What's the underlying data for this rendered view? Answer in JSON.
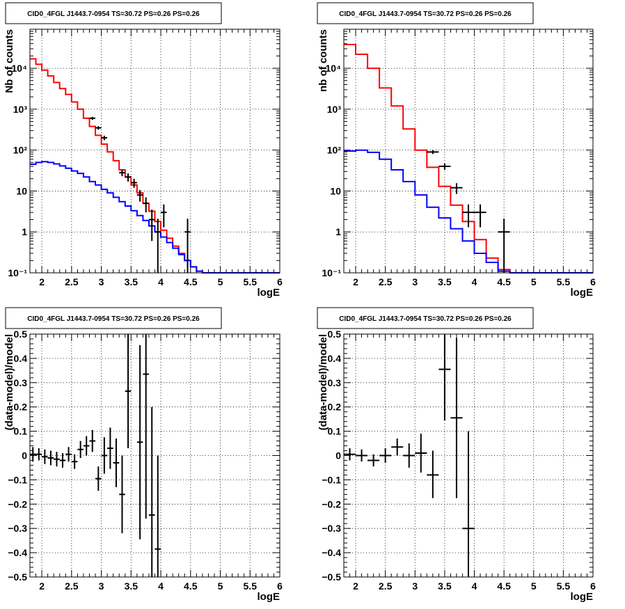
{
  "chart_data": [
    {
      "type": "line",
      "title": "CID0_4FGL J1443.7-0954 TS=30.72 PS=0.26 PS=0.26",
      "xlabel": "logE",
      "ylabel": "Nb of counts",
      "xlim": [
        1.8,
        6.0
      ],
      "ylim": [
        0.1,
        90000
      ],
      "y_scale": "log",
      "grid": true,
      "x_ticks": [
        2,
        2.5,
        3,
        3.5,
        4,
        4.5,
        5,
        5.5,
        6
      ],
      "x_tick_labels": [
        "2",
        "2.5",
        "3",
        "3.5",
        "4",
        "4.5",
        "5",
        "5.5",
        "6"
      ],
      "y_ticks": [
        0.1,
        1,
        10,
        100,
        1000,
        10000
      ],
      "y_tick_labels": [
        "10⁻¹",
        "1",
        "10",
        "10²",
        "10³",
        "10⁴"
      ],
      "bin_edges": [
        1.8,
        1.9,
        2.0,
        2.1,
        2.2,
        2.3,
        2.4,
        2.5,
        2.6,
        2.7,
        2.8,
        2.9,
        3.0,
        3.1,
        3.2,
        3.3,
        3.4,
        3.5,
        3.6,
        3.7,
        3.8,
        3.9,
        4.0,
        4.1,
        4.2,
        4.3,
        4.4,
        4.5,
        4.6,
        4.7,
        4.8,
        4.9,
        5.0,
        5.1,
        5.2,
        5.3,
        5.4,
        5.5,
        5.6,
        5.7,
        5.8,
        5.9,
        6.0
      ],
      "series": [
        {
          "name": "",
          "color": "#ff0000",
          "style": "step",
          "values": [
            17000,
            12500,
            9000,
            6500,
            4500,
            3200,
            2300,
            1500,
            1000,
            600,
            380,
            230,
            140,
            90,
            55,
            33,
            22,
            14,
            9,
            5,
            3.2,
            1.8,
            1.1,
            0.7,
            0.45,
            0.3,
            0.2,
            0.14,
            0.11,
            0.1,
            0.1,
            0.1,
            0.1,
            0.1,
            0.1,
            0.1,
            0.1,
            0.1,
            0.1,
            0.1,
            0.1,
            0.1
          ]
        },
        {
          "name": "",
          "color": "#0000ff",
          "style": "step",
          "values": [
            45,
            50,
            52,
            50,
            46,
            41,
            36,
            31,
            27,
            22,
            17,
            14,
            11,
            9,
            7,
            5.5,
            4.3,
            3.3,
            2.5,
            1.9,
            1.4,
            1.0,
            0.75,
            0.55,
            0.4,
            0.28,
            0.2,
            0.14,
            0.11,
            0.1,
            0.1,
            0.1,
            0.1,
            0.1,
            0.1,
            0.1,
            0.1,
            0.1,
            0.1,
            0.1,
            0.1,
            0.1
          ]
        }
      ],
      "points": [
        {
          "x": 2.85,
          "y": 600,
          "ylo": 550,
          "yhi": 650
        },
        {
          "x": 2.95,
          "y": 350,
          "ylo": 315,
          "yhi": 385
        },
        {
          "x": 3.05,
          "y": 200,
          "ylo": 175,
          "yhi": 225
        },
        {
          "x": 3.35,
          "y": 28,
          "ylo": 23,
          "yhi": 33
        },
        {
          "x": 3.45,
          "y": 22,
          "ylo": 17,
          "yhi": 27
        },
        {
          "x": 3.55,
          "y": 16,
          "ylo": 12,
          "yhi": 20
        },
        {
          "x": 3.65,
          "y": 8,
          "ylo": 5.5,
          "yhi": 10.5
        },
        {
          "x": 3.75,
          "y": 5,
          "ylo": 3,
          "yhi": 7
        },
        {
          "x": 3.85,
          "y": 2,
          "ylo": 0.6,
          "yhi": 3.5
        },
        {
          "x": 3.95,
          "y": 1,
          "ylo": 0.1,
          "yhi": 2.1
        },
        {
          "x": 4.05,
          "y": 3,
          "ylo": 1.3,
          "yhi": 4.7
        },
        {
          "x": 4.45,
          "y": 1,
          "ylo": 0.1,
          "yhi": 2.1
        }
      ]
    },
    {
      "type": "line",
      "title": "CID0_4FGL J1443.7-0954 TS=30.72 PS=0.26 PS=0.26",
      "xlabel": "logE",
      "ylabel": "nb of counts",
      "xlim": [
        1.8,
        6.0
      ],
      "ylim": [
        0.1,
        90000
      ],
      "y_scale": "log",
      "grid": true,
      "x_ticks": [
        2,
        2.5,
        3,
        3.5,
        4,
        4.5,
        5,
        5.5,
        6
      ],
      "x_tick_labels": [
        "2",
        "2.5",
        "3",
        "3.5",
        "4",
        "4.5",
        "5",
        "5.5",
        "6"
      ],
      "y_ticks": [
        0.1,
        1,
        10,
        100,
        1000,
        10000
      ],
      "y_tick_labels": [
        "10⁻¹",
        "1",
        "10",
        "10²",
        "10³",
        "10⁴"
      ],
      "bin_edges": [
        1.8,
        2.0,
        2.2,
        2.4,
        2.6,
        2.8,
        3.0,
        3.2,
        3.4,
        3.6,
        3.8,
        4.0,
        4.2,
        4.4,
        4.6,
        4.8,
        5.0,
        5.2,
        5.4,
        5.6,
        5.8,
        6.0
      ],
      "series": [
        {
          "name": "",
          "color": "#ff0000",
          "style": "step",
          "values": [
            38000,
            22000,
            10000,
            3300,
            1200,
            330,
            100,
            38,
            13,
            4.5,
            1.8,
            0.65,
            0.23,
            0.12,
            0.1,
            0.1,
            0.1,
            0.1,
            0.1,
            0.1,
            0.1
          ]
        },
        {
          "name": "",
          "color": "#0000ff",
          "style": "step",
          "values": [
            95,
            100,
            88,
            60,
            33,
            17,
            8,
            4,
            2.2,
            1.2,
            0.6,
            0.3,
            0.18,
            0.11,
            0.1,
            0.1,
            0.1,
            0.1,
            0.1,
            0.1,
            0.1
          ]
        }
      ],
      "points": [
        {
          "x": 3.3,
          "y": 90,
          "ylo": 80,
          "yhi": 100
        },
        {
          "x": 3.5,
          "y": 40,
          "ylo": 33,
          "yhi": 47
        },
        {
          "x": 3.7,
          "y": 12,
          "ylo": 8.5,
          "yhi": 15.5
        },
        {
          "x": 3.9,
          "y": 3,
          "ylo": 1.3,
          "yhi": 4.7
        },
        {
          "x": 4.1,
          "y": 3,
          "ylo": 1.3,
          "yhi": 4.7
        },
        {
          "x": 4.5,
          "y": 1,
          "ylo": 0.1,
          "yhi": 2.1
        }
      ]
    },
    {
      "type": "scatter",
      "title": "CID0_4FGL J1443.7-0954 TS=30.72 PS=0.26 PS=0.26",
      "xlabel": "logE",
      "ylabel": "(data-model)/model",
      "xlim": [
        1.8,
        6.0
      ],
      "ylim": [
        -0.5,
        0.5
      ],
      "y_scale": "linear",
      "grid": true,
      "x_ticks": [
        2,
        2.5,
        3,
        3.5,
        4,
        4.5,
        5,
        5.5,
        6
      ],
      "x_tick_labels": [
        "2",
        "2.5",
        "3",
        "3.5",
        "4",
        "4.5",
        "5",
        "5.5",
        "6"
      ],
      "y_ticks": [
        -0.5,
        -0.4,
        -0.3,
        -0.2,
        -0.1,
        0,
        0.1,
        0.2,
        0.3,
        0.4,
        0.5
      ],
      "y_tick_labels": [
        "−0.5",
        "−0.4",
        "−0.3",
        "−0.2",
        "−0.1",
        "0",
        "0.1",
        "0.2",
        "0.3",
        "0.4",
        "0.5"
      ],
      "x_halfwidth": 0.05,
      "points": [
        {
          "x": 1.85,
          "y": 0.005,
          "ylo": -0.025,
          "yhi": 0.035
        },
        {
          "x": 1.95,
          "y": 0.005,
          "ylo": -0.02,
          "yhi": 0.03
        },
        {
          "x": 2.05,
          "y": -0.005,
          "ylo": -0.035,
          "yhi": 0.025
        },
        {
          "x": 2.15,
          "y": -0.01,
          "ylo": -0.04,
          "yhi": 0.02
        },
        {
          "x": 2.25,
          "y": -0.015,
          "ylo": -0.045,
          "yhi": 0.015
        },
        {
          "x": 2.35,
          "y": -0.02,
          "ylo": -0.05,
          "yhi": 0.01
        },
        {
          "x": 2.45,
          "y": 0.005,
          "ylo": -0.025,
          "yhi": 0.035
        },
        {
          "x": 2.55,
          "y": -0.025,
          "ylo": -0.055,
          "yhi": 0.005
        },
        {
          "x": 2.65,
          "y": 0.025,
          "ylo": -0.01,
          "yhi": 0.06
        },
        {
          "x": 2.75,
          "y": 0.04,
          "ylo": 0.0,
          "yhi": 0.08
        },
        {
          "x": 2.85,
          "y": 0.06,
          "ylo": 0.015,
          "yhi": 0.105
        },
        {
          "x": 2.95,
          "y": -0.095,
          "ylo": -0.145,
          "yhi": -0.045
        },
        {
          "x": 3.05,
          "y": 0.0,
          "ylo": -0.075,
          "yhi": 0.075
        },
        {
          "x": 3.15,
          "y": 0.03,
          "ylo": -0.055,
          "yhi": 0.115
        },
        {
          "x": 3.25,
          "y": -0.03,
          "ylo": -0.13,
          "yhi": 0.07
        },
        {
          "x": 3.35,
          "y": -0.16,
          "ylo": -0.32,
          "yhi": 0.0
        },
        {
          "x": 3.45,
          "y": 0.265,
          "ylo": 0.03,
          "yhi": 0.5
        },
        {
          "x": 3.65,
          "y": 0.055,
          "ylo": -0.345,
          "yhi": 0.455
        },
        {
          "x": 3.75,
          "y": 0.335,
          "ylo": -0.26,
          "yhi": 0.5
        },
        {
          "x": 3.85,
          "y": -0.245,
          "ylo": -0.5,
          "yhi": 0.2
        },
        {
          "x": 3.95,
          "y": -0.385,
          "ylo": -0.5,
          "yhi": 0.0
        }
      ]
    },
    {
      "type": "scatter",
      "title": "CID0_4FGL J1443.7-0954 TS=30.72 PS=0.26 PS=0.26",
      "xlabel": "logE",
      "ylabel": "(data-model)/model",
      "xlim": [
        1.8,
        6.0
      ],
      "ylim": [
        -0.5,
        0.5
      ],
      "y_scale": "linear",
      "grid": true,
      "x_ticks": [
        2,
        2.5,
        3,
        3.5,
        4,
        4.5,
        5,
        5.5,
        6
      ],
      "x_tick_labels": [
        "2",
        "2.5",
        "3",
        "3.5",
        "4",
        "4.5",
        "5",
        "5.5",
        "6"
      ],
      "y_ticks": [
        -0.5,
        -0.4,
        -0.3,
        -0.2,
        -0.1,
        0,
        0.1,
        0.2,
        0.3,
        0.4,
        0.5
      ],
      "y_tick_labels": [
        "−0.5",
        "−0.4",
        "−0.3",
        "−0.2",
        "−0.1",
        "0",
        "0.1",
        "0.2",
        "0.3",
        "0.4",
        "0.5"
      ],
      "x_halfwidth": 0.1,
      "points": [
        {
          "x": 1.9,
          "y": 0.005,
          "ylo": -0.02,
          "yhi": 0.03
        },
        {
          "x": 2.1,
          "y": 0.0,
          "ylo": -0.025,
          "yhi": 0.025
        },
        {
          "x": 2.3,
          "y": -0.02,
          "ylo": -0.045,
          "yhi": 0.005
        },
        {
          "x": 2.5,
          "y": 0.0,
          "ylo": -0.03,
          "yhi": 0.03
        },
        {
          "x": 2.7,
          "y": 0.035,
          "ylo": 0.0,
          "yhi": 0.07
        },
        {
          "x": 2.9,
          "y": 0.0,
          "ylo": -0.05,
          "yhi": 0.05
        },
        {
          "x": 3.1,
          "y": 0.01,
          "ylo": -0.07,
          "yhi": 0.09
        },
        {
          "x": 3.3,
          "y": -0.08,
          "ylo": -0.175,
          "yhi": 0.02
        },
        {
          "x": 3.5,
          "y": 0.355,
          "ylo": 0.145,
          "yhi": 0.5
        },
        {
          "x": 3.7,
          "y": 0.155,
          "ylo": -0.175,
          "yhi": 0.485
        },
        {
          "x": 3.9,
          "y": -0.3,
          "ylo": -0.5,
          "yhi": 0.1
        }
      ]
    }
  ]
}
